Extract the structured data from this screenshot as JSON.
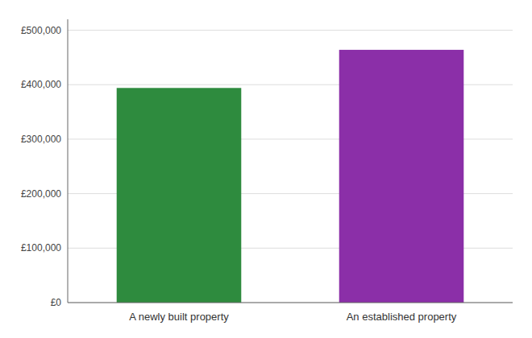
{
  "chart_data": {
    "type": "bar",
    "categories": [
      "A newly built property",
      "An established property"
    ],
    "values": [
      394000,
      464000
    ],
    "colors": [
      "#2e8b3e",
      "#8b2fa8"
    ],
    "ylim": [
      0,
      520000
    ],
    "yticks": [
      {
        "value": 0,
        "label": "£0"
      },
      {
        "value": 100000,
        "label": "£100,000"
      },
      {
        "value": 200000,
        "label": "£200,000"
      },
      {
        "value": 300000,
        "label": "£300,000"
      },
      {
        "value": 400000,
        "label": "£400,000"
      },
      {
        "value": 500000,
        "label": "£500,000"
      }
    ],
    "grid": true
  }
}
